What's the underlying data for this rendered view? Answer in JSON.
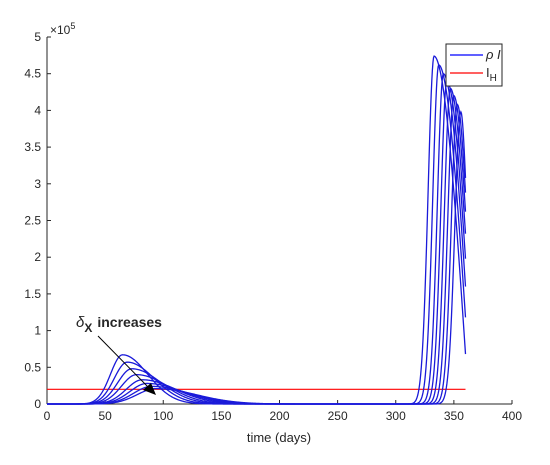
{
  "chart_data": {
    "type": "line",
    "xlabel": "time (days)",
    "ylabel": "",
    "xlim": [
      0,
      400
    ],
    "ylim": [
      0,
      500000
    ],
    "y_multiplier_label": {
      "base": "×10",
      "exp": "5"
    },
    "xticks": [
      "0",
      "50",
      "100",
      "150",
      "200",
      "250",
      "300",
      "350",
      "400"
    ],
    "yticks": [
      "0",
      "0.5",
      "1",
      "1.5",
      "2",
      "2.5",
      "3",
      "3.5",
      "4",
      "4.5",
      "5"
    ],
    "grid": false,
    "legend": {
      "placement": "top-right",
      "entries": [
        {
          "name_main": "ρ I",
          "name_sub": "",
          "color": "#0000ff"
        },
        {
          "name_main": "I",
          "name_sub": "H",
          "color": "#ff0000"
        }
      ]
    },
    "annotation": {
      "symbol": "δ",
      "sub": "X",
      "text": "increases"
    },
    "line_color": "#1a1ad9",
    "threshold": {
      "name": "I_H",
      "value": 20000,
      "x_range": [
        0,
        360
      ],
      "color": "#ff0000"
    },
    "series": [
      {
        "peak1": [
          65,
          67000
        ],
        "w1": 12,
        "peak2": [
          333,
          474000
        ],
        "end": 68000
      },
      {
        "peak1": [
          69,
          57000
        ],
        "w1": 13,
        "peak2": [
          337,
          462000
        ],
        "end": 118000
      },
      {
        "peak1": [
          73,
          48000
        ],
        "w1": 14,
        "peak2": [
          341,
          450000
        ],
        "end": 160000
      },
      {
        "peak1": [
          77,
          40000
        ],
        "w1": 15,
        "peak2": [
          344,
          440000
        ],
        "end": 198000
      },
      {
        "peak1": [
          82,
          33000
        ],
        "w1": 16,
        "peak2": [
          347,
          430000
        ],
        "end": 232000
      },
      {
        "peak1": [
          86,
          28000
        ],
        "w1": 17,
        "peak2": [
          350,
          420000
        ],
        "end": 262000
      },
      {
        "peak1": [
          90,
          24000
        ],
        "w1": 18,
        "peak2": [
          353,
          408000
        ],
        "end": 288000
      },
      {
        "peak1": [
          94,
          21000
        ],
        "w1": 19,
        "peak2": [
          356,
          398000
        ],
        "end": 308000
      }
    ]
  }
}
